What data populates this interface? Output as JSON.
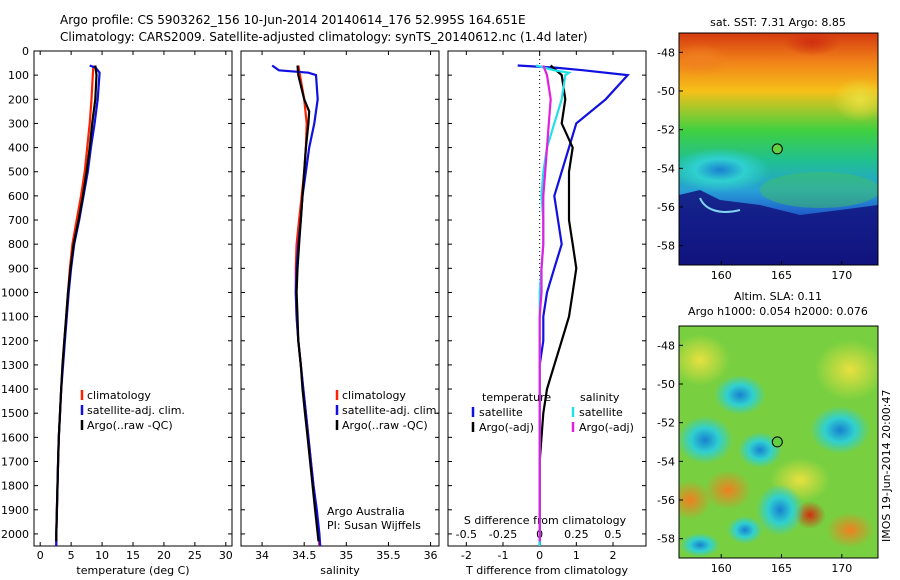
{
  "header": {
    "line1": "Argo profile: CS 5903262_156 10-Jun-2014 20140614_176 52.995S 164.651E",
    "line2": "Climatology: CARS2009. Satellite-adjusted climatology: synTS_20140612.nc (1.4d later)"
  },
  "colors": {
    "climatology": "#ff2200",
    "satellite": "#1010e0",
    "argo": "#000000",
    "sat_salinity": "#22e0e8",
    "argo_salinity": "#e020e0"
  },
  "chart_data": [
    {
      "id": "temperature",
      "type": "line",
      "xlabel": "temperature (deg C)",
      "xlim": [
        -1,
        31
      ],
      "xticks": [
        0,
        5,
        10,
        15,
        20,
        25,
        30
      ],
      "ylim": [
        0,
        2050
      ],
      "yticks": [
        0,
        100,
        200,
        300,
        400,
        500,
        600,
        700,
        800,
        900,
        1000,
        1100,
        1200,
        1300,
        1400,
        1500,
        1600,
        1700,
        1800,
        1900,
        2000
      ],
      "legend": [
        "climatology",
        "satellite-adj. clim.",
        "Argo(..raw -QC)"
      ],
      "series": [
        {
          "name": "climatology",
          "color": "#ff2200",
          "points": [
            [
              8.6,
              60
            ],
            [
              8.5,
              100
            ],
            [
              8.3,
              200
            ],
            [
              8.0,
              300
            ],
            [
              7.6,
              400
            ],
            [
              7.2,
              500
            ],
            [
              6.6,
              600
            ],
            [
              5.9,
              700
            ],
            [
              5.2,
              800
            ],
            [
              4.8,
              900
            ],
            [
              4.5,
              1000
            ],
            [
              4.2,
              1100
            ],
            [
              3.9,
              1200
            ],
            [
              3.6,
              1300
            ],
            [
              3.4,
              1400
            ],
            [
              3.2,
              1500
            ],
            [
              3.0,
              1600
            ],
            [
              2.9,
              1700
            ],
            [
              2.8,
              1800
            ],
            [
              2.7,
              1900
            ],
            [
              2.6,
              2000
            ],
            [
              2.6,
              2050
            ]
          ]
        },
        {
          "name": "satellite-adj. clim.",
          "color": "#1010e0",
          "points": [
            [
              8.0,
              60
            ],
            [
              9.0,
              70
            ],
            [
              9.6,
              90
            ],
            [
              9.3,
              200
            ],
            [
              8.8,
              300
            ],
            [
              8.2,
              400
            ],
            [
              7.7,
              500
            ],
            [
              7.0,
              600
            ],
            [
              6.3,
              700
            ],
            [
              5.5,
              800
            ],
            [
              5.0,
              900
            ],
            [
              4.6,
              1000
            ],
            [
              4.3,
              1100
            ],
            [
              4.0,
              1200
            ],
            [
              3.7,
              1300
            ],
            [
              3.4,
              1400
            ],
            [
              3.2,
              1500
            ],
            [
              3.0,
              1600
            ],
            [
              2.9,
              1700
            ],
            [
              2.8,
              1800
            ],
            [
              2.7,
              1900
            ],
            [
              2.6,
              2000
            ],
            [
              2.6,
              2050
            ]
          ]
        },
        {
          "name": "Argo(..raw -QC)",
          "color": "#000000",
          "points": [
            [
              8.9,
              60
            ],
            [
              9.1,
              100
            ],
            [
              8.9,
              200
            ],
            [
              8.4,
              300
            ],
            [
              8.0,
              400
            ],
            [
              7.5,
              500
            ],
            [
              6.9,
              600
            ],
            [
              6.2,
              700
            ],
            [
              5.4,
              800
            ],
            [
              4.9,
              900
            ],
            [
              4.5,
              1000
            ],
            [
              4.2,
              1100
            ],
            [
              3.9,
              1200
            ],
            [
              3.6,
              1300
            ],
            [
              3.4,
              1400
            ],
            [
              3.2,
              1500
            ],
            [
              3.0,
              1600
            ],
            [
              2.9,
              1700
            ],
            [
              2.8,
              1800
            ],
            [
              2.7,
              1900
            ],
            [
              2.6,
              2000
            ],
            [
              2.6,
              2030
            ]
          ]
        }
      ]
    },
    {
      "id": "salinity",
      "type": "line",
      "xlabel": "salinity",
      "xlim": [
        33.75,
        36.1
      ],
      "xticks": [
        34,
        34.5,
        35,
        35.5,
        36
      ],
      "xticklabels": [
        "34",
        "34.5",
        "35",
        "35.5",
        "36"
      ],
      "ylim": [
        0,
        2050
      ],
      "legend": [
        "climatology",
        "satellite-adj. clim.",
        "Argo(..raw -QC)"
      ],
      "annotation": [
        "Argo Australia",
        "PI: Susan Wijffels"
      ],
      "series": [
        {
          "name": "climatology",
          "color": "#ff2200",
          "points": [
            [
              34.43,
              60
            ],
            [
              34.45,
              100
            ],
            [
              34.5,
              200
            ],
            [
              34.53,
              300
            ],
            [
              34.52,
              400
            ],
            [
              34.5,
              500
            ],
            [
              34.47,
              600
            ],
            [
              34.44,
              700
            ],
            [
              34.41,
              800
            ],
            [
              34.4,
              900
            ],
            [
              34.4,
              1000
            ],
            [
              34.41,
              1100
            ],
            [
              34.43,
              1200
            ],
            [
              34.46,
              1300
            ],
            [
              34.49,
              1400
            ],
            [
              34.52,
              1500
            ],
            [
              34.55,
              1600
            ],
            [
              34.58,
              1700
            ],
            [
              34.61,
              1800
            ],
            [
              34.64,
              1900
            ],
            [
              34.67,
              2000
            ],
            [
              34.68,
              2050
            ]
          ]
        },
        {
          "name": "satellite-adj. clim.",
          "color": "#1010e0",
          "points": [
            [
              34.12,
              60
            ],
            [
              34.2,
              80
            ],
            [
              34.55,
              90
            ],
            [
              34.64,
              100
            ],
            [
              34.66,
              200
            ],
            [
              34.62,
              300
            ],
            [
              34.56,
              400
            ],
            [
              34.52,
              500
            ],
            [
              34.48,
              600
            ],
            [
              34.46,
              700
            ],
            [
              34.43,
              800
            ],
            [
              34.41,
              900
            ],
            [
              34.4,
              1000
            ],
            [
              34.41,
              1100
            ],
            [
              34.43,
              1200
            ],
            [
              34.46,
              1300
            ],
            [
              34.49,
              1400
            ],
            [
              34.52,
              1500
            ],
            [
              34.55,
              1600
            ],
            [
              34.58,
              1700
            ],
            [
              34.61,
              1800
            ],
            [
              34.65,
              1900
            ],
            [
              34.68,
              2000
            ],
            [
              34.69,
              2050
            ]
          ]
        },
        {
          "name": "Argo(..raw -QC)",
          "color": "#000000",
          "points": [
            [
              34.42,
              60
            ],
            [
              34.43,
              100
            ],
            [
              34.5,
              200
            ],
            [
              34.56,
              250
            ],
            [
              34.55,
              300
            ],
            [
              34.52,
              400
            ],
            [
              34.5,
              500
            ],
            [
              34.48,
              600
            ],
            [
              34.46,
              700
            ],
            [
              34.44,
              800
            ],
            [
              34.42,
              900
            ],
            [
              34.41,
              1000
            ],
            [
              34.42,
              1100
            ],
            [
              34.43,
              1200
            ],
            [
              34.46,
              1300
            ],
            [
              34.48,
              1400
            ],
            [
              34.51,
              1500
            ],
            [
              34.54,
              1600
            ],
            [
              34.57,
              1700
            ],
            [
              34.6,
              1800
            ],
            [
              34.63,
              1900
            ],
            [
              34.66,
              2000
            ],
            [
              34.67,
              2030
            ]
          ]
        }
      ]
    },
    {
      "id": "difference",
      "type": "line",
      "xlabel": "T difference from climatology",
      "xlim": [
        -2.5,
        2.9
      ],
      "xticks": [
        -2,
        -1,
        0,
        1,
        2
      ],
      "top_xlabel": "S difference from climatology",
      "top_xticks": [
        "-0.5",
        "-0.25",
        "0",
        "0.25",
        "0.5"
      ],
      "ylim": [
        0,
        2050
      ],
      "legend": {
        "temperature": "temperature",
        "salinity": "salinity",
        "items": [
          "satellite",
          "Argo(-adj)",
          "satellite",
          "Argo(-adj)"
        ]
      },
      "series": [
        {
          "name": "temperature satellite",
          "color": "#1010e0",
          "points": [
            [
              -0.6,
              60
            ],
            [
              0.5,
              70
            ],
            [
              1.2,
              80
            ],
            [
              2.4,
              100
            ],
            [
              1.8,
              200
            ],
            [
              1.0,
              300
            ],
            [
              0.8,
              400
            ],
            [
              0.6,
              500
            ],
            [
              0.4,
              600
            ],
            [
              0.5,
              700
            ],
            [
              0.6,
              800
            ],
            [
              0.4,
              900
            ],
            [
              0.2,
              1000
            ],
            [
              0.1,
              1100
            ],
            [
              0.1,
              1200
            ],
            [
              0.0,
              1300
            ],
            [
              0.0,
              1400
            ],
            [
              0.0,
              1500
            ],
            [
              0.0,
              1600
            ],
            [
              0.0,
              1700
            ],
            [
              0.0,
              1800
            ],
            [
              0.0,
              1900
            ],
            [
              0.0,
              2000
            ],
            [
              0.0,
              2050
            ]
          ]
        },
        {
          "name": "temperature Argo(-adj)",
          "color": "#000000",
          "points": [
            [
              0.3,
              60
            ],
            [
              0.6,
              100
            ],
            [
              0.7,
              200
            ],
            [
              0.6,
              300
            ],
            [
              0.9,
              400
            ],
            [
              0.8,
              500
            ],
            [
              0.8,
              600
            ],
            [
              0.8,
              700
            ],
            [
              0.9,
              800
            ],
            [
              1.0,
              900
            ],
            [
              0.9,
              1000
            ],
            [
              0.8,
              1100
            ],
            [
              0.6,
              1200
            ],
            [
              0.4,
              1300
            ],
            [
              0.2,
              1400
            ],
            [
              0.1,
              1500
            ],
            [
              0.05,
              1600
            ],
            [
              0.0,
              1700
            ],
            [
              0.0,
              1800
            ],
            [
              0.0,
              1900
            ],
            [
              0.0,
              2000
            ],
            [
              0.0,
              2050
            ]
          ]
        },
        {
          "name": "salinity satellite",
          "color": "#22e0e8",
          "points": [
            [
              -0.1,
              60
            ],
            [
              0.4,
              80
            ],
            [
              0.8,
              90
            ],
            [
              0.7,
              100
            ],
            [
              0.6,
              200
            ],
            [
              0.4,
              300
            ],
            [
              0.2,
              400
            ],
            [
              0.1,
              500
            ],
            [
              0.05,
              600
            ],
            [
              0.1,
              700
            ],
            [
              0.1,
              800
            ],
            [
              0.05,
              900
            ],
            [
              0.0,
              1000
            ],
            [
              0.0,
              1100
            ],
            [
              0.0,
              1200
            ],
            [
              0.0,
              1300
            ],
            [
              0.0,
              1400
            ],
            [
              0.0,
              1500
            ],
            [
              0.0,
              1600
            ],
            [
              0.0,
              1700
            ],
            [
              0.0,
              1800
            ],
            [
              0.0,
              1900
            ],
            [
              0.0,
              2000
            ],
            [
              0.0,
              2050
            ]
          ]
        },
        {
          "name": "salinity Argo(-adj)",
          "color": "#e020e0",
          "points": [
            [
              0.1,
              60
            ],
            [
              0.2,
              100
            ],
            [
              0.3,
              200
            ],
            [
              0.25,
              300
            ],
            [
              0.2,
              400
            ],
            [
              0.15,
              500
            ],
            [
              0.1,
              600
            ],
            [
              0.1,
              700
            ],
            [
              0.1,
              800
            ],
            [
              0.05,
              900
            ],
            [
              0.05,
              1000
            ],
            [
              0.0,
              1100
            ],
            [
              0.0,
              1200
            ],
            [
              0.0,
              1300
            ],
            [
              0.0,
              1400
            ],
            [
              0.0,
              1500
            ],
            [
              0.0,
              1600
            ],
            [
              0.0,
              1700
            ],
            [
              0.0,
              1800
            ],
            [
              0.0,
              1900
            ],
            [
              0.0,
              2000
            ],
            [
              0.0,
              2030
            ]
          ]
        }
      ]
    },
    {
      "id": "sst-map",
      "type": "heatmap",
      "title": "sat. SST: 7.31  Argo: 8.85",
      "xlim": [
        156.5,
        173
      ],
      "ylim": [
        -59,
        -47
      ],
      "xticks": [
        160,
        165,
        170
      ],
      "yticks": [
        -48,
        -50,
        -52,
        -54,
        -56,
        -58
      ],
      "marker": {
        "lon": 164.651,
        "lat": -52.995
      }
    },
    {
      "id": "sla-map",
      "type": "heatmap",
      "title_line1": "Altim. SLA: 0.11",
      "title_line2": "Argo h1000: 0.054  h2000: 0.076",
      "xlim": [
        156.5,
        173
      ],
      "ylim": [
        -59,
        -47
      ],
      "xticks": [
        160,
        165,
        170
      ],
      "yticks": [
        -48,
        -50,
        -52,
        -54,
        -56,
        -58
      ],
      "marker": {
        "lon": 164.651,
        "lat": -52.995
      }
    }
  ],
  "footer": {
    "credit": "IMOS 19-Jun-2014 20:00:47"
  }
}
